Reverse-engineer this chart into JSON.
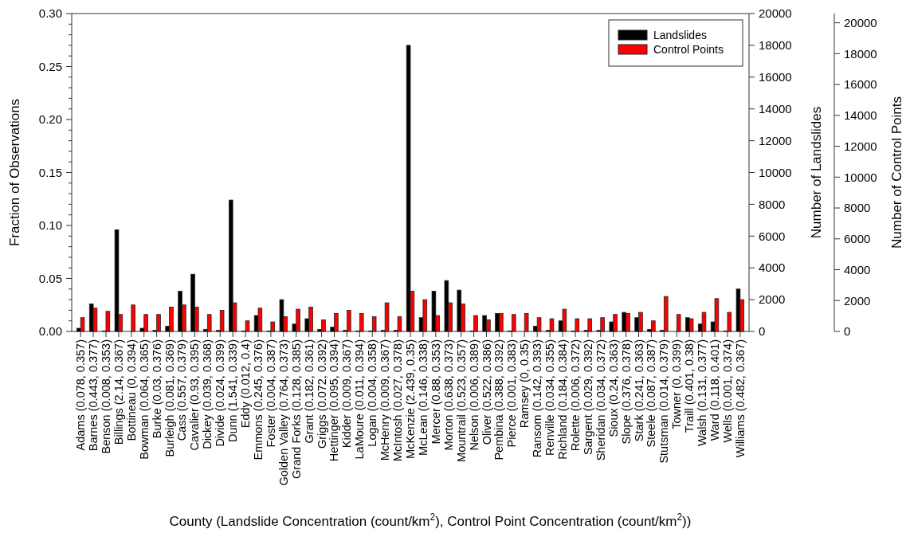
{
  "chart_data": {
    "type": "bar",
    "xlabel": "County (Landslide Concentration (count/km$^{2}$), Control Point Concentration (count/km$^{2}$))",
    "ylabel": "Fraction of Observations",
    "y2label": "Number of Landslides",
    "y3label": "Number of Control Points",
    "categories": [
      "Adams (0.078, 0.357)",
      "Barnes (0.443, 0.377)",
      "Benson (0.008, 0.353)",
      "Billings (2.14, 0.367)",
      "Bottineau (0, 0.394)",
      "Bowman (0.064, 0.365)",
      "Burke (0.03, 0.376)",
      "Burleigh (0.081, 0.369)",
      "Cass (0.557, 0.379)",
      "Cavalier (0.93, 0.395)",
      "Dickey (0.039, 0.368)",
      "Divide (0.024, 0.399)",
      "Dunn (1.541, 0.339)",
      "Eddy (0.012, 0.4)",
      "Emmons (0.245, 0.376)",
      "Foster (0.004, 0.387)",
      "Golden Valley (0.764, 0.373)",
      "Grand Forks (0.128, 0.385)",
      "Grant (0.182, 0.361)",
      "Griggs (0.072, 0.392)",
      "Hettinger (0.095, 0.394)",
      "Kidder (0.009, 0.367)",
      "LaMoure (0.011, 0.394)",
      "Logan (0.004, 0.358)",
      "McHenry (0.009, 0.367)",
      "McIntosh (0.027, 0.378)",
      "McKenzie (2.439, 0.35)",
      "McLean (0.146, 0.338)",
      "Mercer (0.88, 0.353)",
      "Morton (0.638, 0.373)",
      "Mountrail (0.523, 0.357)",
      "Nelson (0.006, 0.389)",
      "Oliver (0.522, 0.386)",
      "Pembina (0.388, 0.392)",
      "Pierce (0.001, 0.383)",
      "Ramsey (0, 0.35)",
      "Ransom (0.142, 0.393)",
      "Renville (0.034, 0.355)",
      "Richland (0.184, 0.384)",
      "Rolette (0.006, 0.372)",
      "Sargent (0.029, 0.392)",
      "Sheridan (0.034, 0.372)",
      "Sioux (0.24, 0.363)",
      "Slope (0.376, 0.378)",
      "Stark (0.241, 0.363)",
      "Steele (0.087, 0.387)",
      "Stutsman (0.014, 0.379)",
      "Towner (0, 0.399)",
      "Traill (0.401, 0.38)",
      "Walsh (0.131, 0.377)",
      "Ward (0.118, 0.401)",
      "Wells (0.001, 0.374)",
      "Williams (0.482, 0.367)"
    ],
    "series": [
      {
        "name": "Landslides",
        "color": "#000000",
        "values": [
          0.003,
          0.026,
          0.0005,
          0.096,
          0,
          0.003,
          0.001,
          0.005,
          0.038,
          0.054,
          0.002,
          0.001,
          0.124,
          0.0005,
          0.015,
          0.0005,
          0.03,
          0.007,
          0.012,
          0.002,
          0.004,
          0.001,
          0.0005,
          0.0005,
          0.001,
          0.001,
          0.27,
          0.013,
          0.038,
          0.048,
          0.039,
          0.0005,
          0.015,
          0.017,
          0.0005,
          0,
          0.005,
          0.001,
          0.01,
          0.0005,
          0.001,
          0.001,
          0.009,
          0.018,
          0.013,
          0.002,
          0.001,
          0,
          0.013,
          0.007,
          0.009,
          0.0005,
          0.04
        ]
      },
      {
        "name": "Control Points",
        "color": "#ff0000",
        "values": [
          0.013,
          0.022,
          0.019,
          0.016,
          0.025,
          0.016,
          0.016,
          0.023,
          0.025,
          0.023,
          0.016,
          0.02,
          0.027,
          0.01,
          0.022,
          0.009,
          0.014,
          0.021,
          0.023,
          0.011,
          0.017,
          0.02,
          0.017,
          0.014,
          0.027,
          0.014,
          0.038,
          0.03,
          0.015,
          0.027,
          0.026,
          0.015,
          0.011,
          0.017,
          0.016,
          0.017,
          0.013,
          0.012,
          0.021,
          0.012,
          0.012,
          0.013,
          0.016,
          0.017,
          0.018,
          0.01,
          0.033,
          0.016,
          0.012,
          0.018,
          0.031,
          0.018,
          0.03
        ]
      }
    ],
    "ylim": [
      0,
      0.3
    ],
    "yticks": [
      {
        "value": 0,
        "label": "0.00"
      },
      {
        "value": 0.01,
        "label": null
      },
      {
        "value": 0.02,
        "label": null
      },
      {
        "value": 0.03,
        "label": null
      },
      {
        "value": 0.04,
        "label": null
      },
      {
        "value": 0.05,
        "label": "0.05"
      },
      {
        "value": 0.06,
        "label": null
      },
      {
        "value": 0.07,
        "label": null
      },
      {
        "value": 0.08,
        "label": null
      },
      {
        "value": 0.09,
        "label": null
      },
      {
        "value": 0.1,
        "label": "0.10"
      },
      {
        "value": 0.11,
        "label": null
      },
      {
        "value": 0.12,
        "label": null
      },
      {
        "value": 0.13,
        "label": null
      },
      {
        "value": 0.14,
        "label": null
      },
      {
        "value": 0.15,
        "label": "0.15"
      },
      {
        "value": 0.16,
        "label": null
      },
      {
        "value": 0.17,
        "label": null
      },
      {
        "value": 0.18,
        "label": null
      },
      {
        "value": 0.19,
        "label": null
      },
      {
        "value": 0.2,
        "label": "0.20"
      },
      {
        "value": 0.21,
        "label": null
      },
      {
        "value": 0.22,
        "label": null
      },
      {
        "value": 0.23,
        "label": null
      },
      {
        "value": 0.24,
        "label": null
      },
      {
        "value": 0.25,
        "label": "0.25"
      },
      {
        "value": 0.26,
        "label": null
      },
      {
        "value": 0.27,
        "label": null
      },
      {
        "value": 0.28,
        "label": null
      },
      {
        "value": 0.29,
        "label": null
      },
      {
        "value": 0.3,
        "label": "0.30"
      }
    ],
    "y2lim": [
      0,
      20000
    ],
    "y2ticks": [
      0,
      2000,
      4000,
      6000,
      8000,
      10000,
      12000,
      14000,
      16000,
      18000,
      20000
    ],
    "y3lim": [
      0,
      20600
    ],
    "y3ticks": [
      0,
      2000,
      4000,
      6000,
      8000,
      10000,
      12000,
      14000,
      16000,
      18000,
      20000
    ],
    "legend": "top right"
  }
}
